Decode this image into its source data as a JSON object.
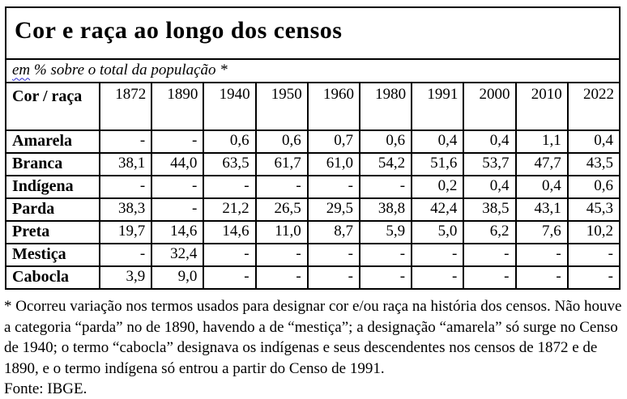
{
  "chart_data": {
    "type": "table",
    "title": "Cor e raça ao longo dos censos",
    "subtitle": "em % sobre o total da população *",
    "corner_header": "Cor / raça",
    "categories": [
      "1872",
      "1890",
      "1940",
      "1950",
      "1960",
      "1980",
      "1991",
      "2000",
      "2010",
      "2022"
    ],
    "missing_marker": "-",
    "decimal_separator": ",",
    "series": [
      {
        "name": "Amarela",
        "values": [
          null,
          null,
          0.6,
          0.6,
          0.7,
          0.6,
          0.4,
          0.4,
          1.1,
          0.4
        ]
      },
      {
        "name": "Branca",
        "values": [
          38.1,
          44.0,
          63.5,
          61.7,
          61.0,
          54.2,
          51.6,
          53.7,
          47.7,
          43.5
        ]
      },
      {
        "name": "Indígena",
        "values": [
          null,
          null,
          null,
          null,
          null,
          null,
          0.2,
          0.4,
          0.4,
          0.6
        ]
      },
      {
        "name": "Parda",
        "values": [
          38.3,
          null,
          21.2,
          26.5,
          29.5,
          38.8,
          42.4,
          38.5,
          43.1,
          45.3
        ]
      },
      {
        "name": "Preta",
        "values": [
          19.7,
          14.6,
          14.6,
          11.0,
          8.7,
          5.9,
          5.0,
          6.2,
          7.6,
          10.2
        ]
      },
      {
        "name": "Mestiça",
        "values": [
          null,
          32.4,
          null,
          null,
          null,
          null,
          null,
          null,
          null,
          null
        ]
      },
      {
        "name": "Cabocla",
        "values": [
          3.9,
          9.0,
          null,
          null,
          null,
          null,
          null,
          null,
          null,
          null
        ]
      }
    ]
  },
  "subtitle_render": {
    "underlined_word": "em",
    "rest": " % sobre o total da população *"
  },
  "footnote": "* Ocorreu variação nos termos usados para designar cor e/ou raça na história dos censos. Não houve a categoria “parda” no de 1890, havendo a de “mestiça”; a designação “amarela” só surge no Censo de 1940; o termo “cabocla” designava os indígenas e seus descendentes nos censos de 1872 e de 1890, e o termo indígena só entrou a partir do Censo de 1991.",
  "source": "Fonte: IBGE.",
  "colors": {
    "text": "#000000",
    "border": "#000000",
    "background": "#ffffff",
    "spellcheck_squiggle": "#2a2ad2"
  }
}
